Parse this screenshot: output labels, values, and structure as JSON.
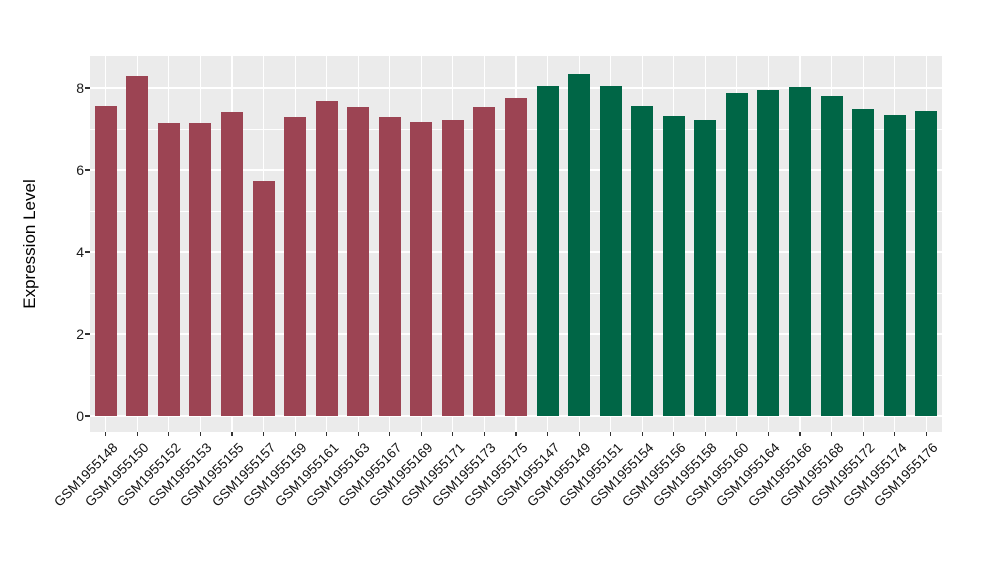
{
  "chart_data": {
    "type": "bar",
    "title": "",
    "xlabel": "",
    "ylabel": "Expression Level",
    "yticks": [
      0,
      2,
      4,
      6,
      8
    ],
    "yticks_minor": [
      1,
      3,
      5,
      7
    ],
    "ylim": [
      -0.4,
      8.8
    ],
    "grid": true,
    "legend_position": "none",
    "x_tick_rotation_deg": 45,
    "panel_background_color": "#EBEBEB",
    "gridline_color": "#FFFFFF",
    "outer_background_color": "#FFFFFF",
    "series": [
      {
        "name": "group-red",
        "color": "#9C4453",
        "categories": [
          "GSM1955148",
          "GSM1955150",
          "GSM1955152",
          "GSM1955153",
          "GSM1955155",
          "GSM1955157",
          "GSM1955159",
          "GSM1955161",
          "GSM1955163",
          "GSM1955167",
          "GSM1955169",
          "GSM1955171",
          "GSM1955173",
          "GSM1955175"
        ],
        "values": [
          7.57,
          8.3,
          7.15,
          7.15,
          7.42,
          5.73,
          7.3,
          7.68,
          7.54,
          7.29,
          7.17,
          7.22,
          7.53,
          7.76
        ]
      },
      {
        "name": "group-green",
        "color": "#006646",
        "categories": [
          "GSM1955147",
          "GSM1955149",
          "GSM1955151",
          "GSM1955154",
          "GSM1955156",
          "GSM1955158",
          "GSM1955160",
          "GSM1955164",
          "GSM1955166",
          "GSM1955168",
          "GSM1955172",
          "GSM1955174",
          "GSM1955176"
        ],
        "values": [
          8.05,
          8.34,
          8.06,
          7.57,
          7.32,
          7.22,
          7.87,
          7.96,
          8.02,
          7.8,
          7.48,
          7.33,
          7.44
        ]
      }
    ]
  }
}
